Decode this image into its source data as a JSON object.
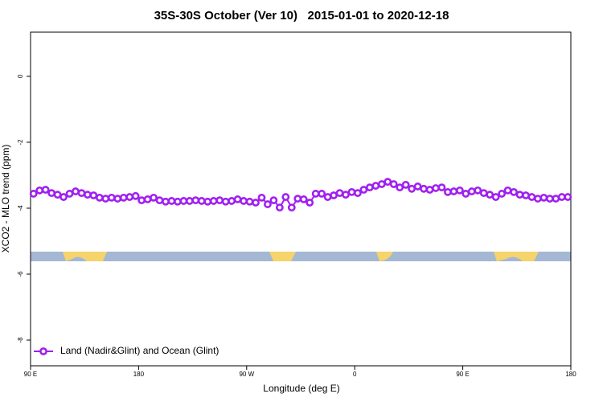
{
  "chart_data": {
    "type": "line",
    "title": "35S-30S October (Ver 10)   2015-01-01 to 2020-12-18",
    "xlabel": "Longitude (deg E)",
    "ylabel": "XCO2 - MLO trend (ppm)",
    "xlim": [
      90,
      540
    ],
    "ylim": [
      -8.78,
      1.34
    ],
    "xticks": [
      {
        "value": 90,
        "label": "90 E"
      },
      180,
      {
        "value": 270,
        "label": "90 W"
      },
      {
        "value": 360,
        "label": "0"
      },
      {
        "value": 450,
        "label": "90 E"
      },
      {
        "value": 540,
        "label": "180"
      }
    ],
    "yticks": [
      0,
      -2,
      -4,
      -6,
      -8
    ],
    "legend": "bottom-left",
    "x": [
      92.5,
      97.5,
      102.5,
      107.5,
      112.5,
      117.5,
      122.5,
      127.5,
      132.5,
      137.5,
      142.5,
      147.5,
      152.5,
      157.5,
      162.5,
      167.5,
      172.5,
      177.5,
      182.5,
      187.5,
      192.5,
      197.5,
      202.5,
      207.5,
      212.5,
      217.5,
      222.5,
      227.5,
      232.5,
      237.5,
      242.5,
      247.5,
      252.5,
      257.5,
      262.5,
      267.5,
      272.5,
      277.5,
      282.5,
      287.5,
      292.5,
      297.5,
      302.5,
      307.5,
      312.5,
      317.5,
      322.5,
      327.5,
      332.5,
      337.5,
      342.5,
      347.5,
      352.5,
      357.5,
      362.5,
      367.5,
      372.5,
      377.5,
      382.5,
      387.5,
      392.5,
      397.5,
      402.5,
      407.5,
      412.5,
      417.5,
      422.5,
      427.5,
      432.5,
      437.5,
      442.5,
      447.5,
      452.5,
      457.5,
      462.5,
      467.5,
      472.5,
      477.5,
      482.5,
      487.5,
      492.5,
      497.5,
      502.5,
      507.5,
      512.5,
      517.5,
      522.5,
      527.5,
      532.5,
      537.5
    ],
    "series": [
      {
        "name": "Land (Nadir&Glint) and Ocean (Glint)",
        "color": "#a020f0",
        "values": [
          -3.56,
          -3.46,
          -3.44,
          -3.54,
          -3.59,
          -3.66,
          -3.56,
          -3.49,
          -3.54,
          -3.59,
          -3.61,
          -3.68,
          -3.71,
          -3.68,
          -3.71,
          -3.68,
          -3.66,
          -3.63,
          -3.76,
          -3.73,
          -3.68,
          -3.76,
          -3.8,
          -3.78,
          -3.8,
          -3.78,
          -3.78,
          -3.76,
          -3.78,
          -3.8,
          -3.78,
          -3.76,
          -3.8,
          -3.78,
          -3.73,
          -3.78,
          -3.8,
          -3.83,
          -3.68,
          -3.88,
          -3.76,
          -3.98,
          -3.66,
          -3.98,
          -3.71,
          -3.73,
          -3.83,
          -3.56,
          -3.56,
          -3.66,
          -3.61,
          -3.54,
          -3.59,
          -3.51,
          -3.54,
          -3.44,
          -3.37,
          -3.32,
          -3.27,
          -3.2,
          -3.27,
          -3.37,
          -3.29,
          -3.41,
          -3.34,
          -3.41,
          -3.44,
          -3.39,
          -3.37,
          -3.51,
          -3.49,
          -3.46,
          -3.56,
          -3.49,
          -3.46,
          -3.54,
          -3.59,
          -3.66,
          -3.56,
          -3.46,
          -3.51,
          -3.59,
          -3.61,
          -3.66,
          -3.71,
          -3.68,
          -3.71,
          -3.71,
          -3.66,
          -3.66
        ]
      }
    ]
  }
}
